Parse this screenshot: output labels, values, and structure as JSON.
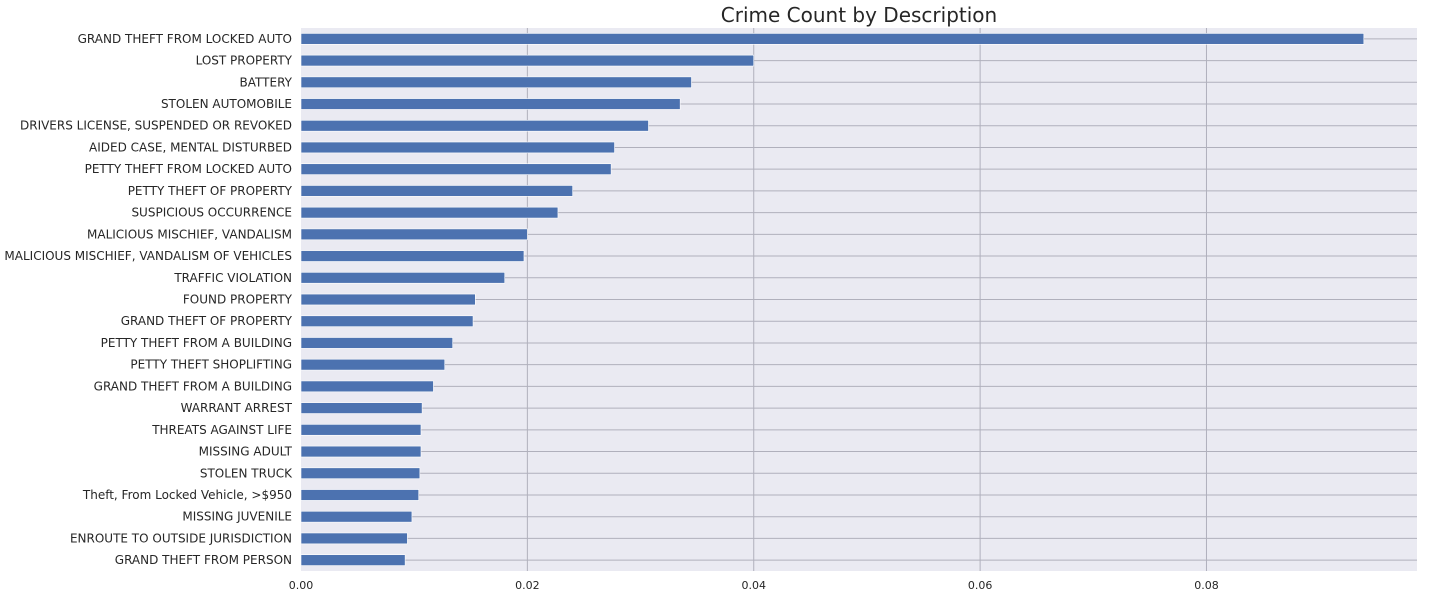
{
  "chart_data": {
    "type": "bar",
    "orientation": "horizontal",
    "title": "Crime Count by Description",
    "xlabel": "",
    "ylabel": "",
    "xlim": [
      0,
      0.0986
    ],
    "xticks": [
      "0.00",
      "0.02",
      "0.04",
      "0.06",
      "0.08"
    ],
    "grid": true,
    "legend": "none",
    "bar_color": "#4c72b0",
    "background_color": "#eaeaf2",
    "categories": [
      "GRAND THEFT FROM LOCKED AUTO",
      "LOST PROPERTY",
      "BATTERY",
      "STOLEN AUTOMOBILE",
      "DRIVERS LICENSE, SUSPENDED OR REVOKED",
      "AIDED CASE, MENTAL DISTURBED",
      "PETTY THEFT FROM LOCKED AUTO",
      "PETTY THEFT OF PROPERTY",
      "SUSPICIOUS OCCURRENCE",
      "MALICIOUS MISCHIEF, VANDALISM",
      "MALICIOUS MISCHIEF, VANDALISM OF VEHICLES",
      "TRAFFIC VIOLATION",
      "FOUND PROPERTY",
      "GRAND THEFT OF PROPERTY",
      "PETTY THEFT FROM A BUILDING",
      "PETTY THEFT SHOPLIFTING",
      "GRAND THEFT FROM A BUILDING",
      "WARRANT ARREST",
      "THREATS AGAINST LIFE",
      "MISSING ADULT",
      "STOLEN TRUCK",
      "Theft, From Locked Vehicle, >$950",
      "MISSING JUVENILE",
      "ENROUTE TO OUTSIDE JURISDICTION",
      "GRAND THEFT FROM PERSON"
    ],
    "values": [
      0.0939,
      0.04,
      0.0345,
      0.0335,
      0.0307,
      0.0277,
      0.0274,
      0.024,
      0.0227,
      0.02,
      0.0197,
      0.018,
      0.0154,
      0.0152,
      0.0134,
      0.0127,
      0.0117,
      0.0107,
      0.0106,
      0.0106,
      0.0105,
      0.0104,
      0.0098,
      0.0094,
      0.0092
    ]
  }
}
